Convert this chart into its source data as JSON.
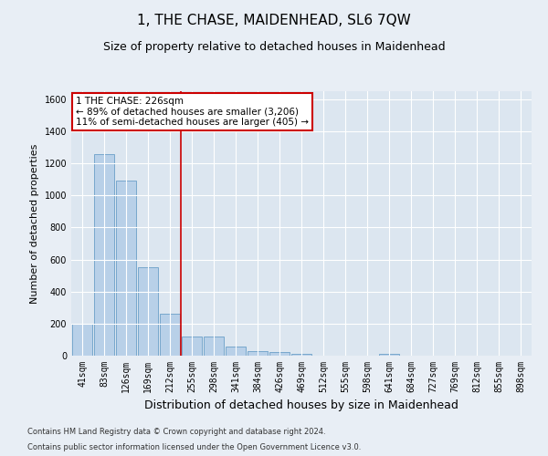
{
  "title": "1, THE CHASE, MAIDENHEAD, SL6 7QW",
  "subtitle": "Size of property relative to detached houses in Maidenhead",
  "xlabel": "Distribution of detached houses by size in Maidenhead",
  "ylabel": "Number of detached properties",
  "footnote1": "Contains HM Land Registry data © Crown copyright and database right 2024.",
  "footnote2": "Contains public sector information licensed under the Open Government Licence v3.0.",
  "bar_labels": [
    "41sqm",
    "83sqm",
    "126sqm",
    "169sqm",
    "212sqm",
    "255sqm",
    "298sqm",
    "341sqm",
    "384sqm",
    "426sqm",
    "469sqm",
    "512sqm",
    "555sqm",
    "598sqm",
    "641sqm",
    "684sqm",
    "727sqm",
    "769sqm",
    "812sqm",
    "855sqm",
    "898sqm"
  ],
  "bar_values": [
    197,
    1260,
    1095,
    553,
    262,
    120,
    120,
    57,
    30,
    20,
    13,
    0,
    0,
    0,
    13,
    0,
    0,
    0,
    0,
    0,
    0
  ],
  "bar_color": "#b8d0e8",
  "bar_edge_color": "#6a9fc8",
  "vline_x": 4.5,
  "vline_color": "#cc0000",
  "annotation_text": "1 THE CHASE: 226sqm\n← 89% of detached houses are smaller (3,206)\n11% of semi-detached houses are larger (405) →",
  "annotation_box_color": "#ffffff",
  "annotation_box_edge": "#cc0000",
  "ylim": [
    0,
    1650
  ],
  "yticks": [
    0,
    200,
    400,
    600,
    800,
    1000,
    1200,
    1400,
    1600
  ],
  "background_color": "#e8eef5",
  "plot_bg_color": "#dce6f0",
  "grid_color": "#ffffff",
  "title_fontsize": 11,
  "subtitle_fontsize": 9,
  "ylabel_fontsize": 8,
  "xlabel_fontsize": 9,
  "tick_fontsize": 7,
  "annot_fontsize": 7.5
}
